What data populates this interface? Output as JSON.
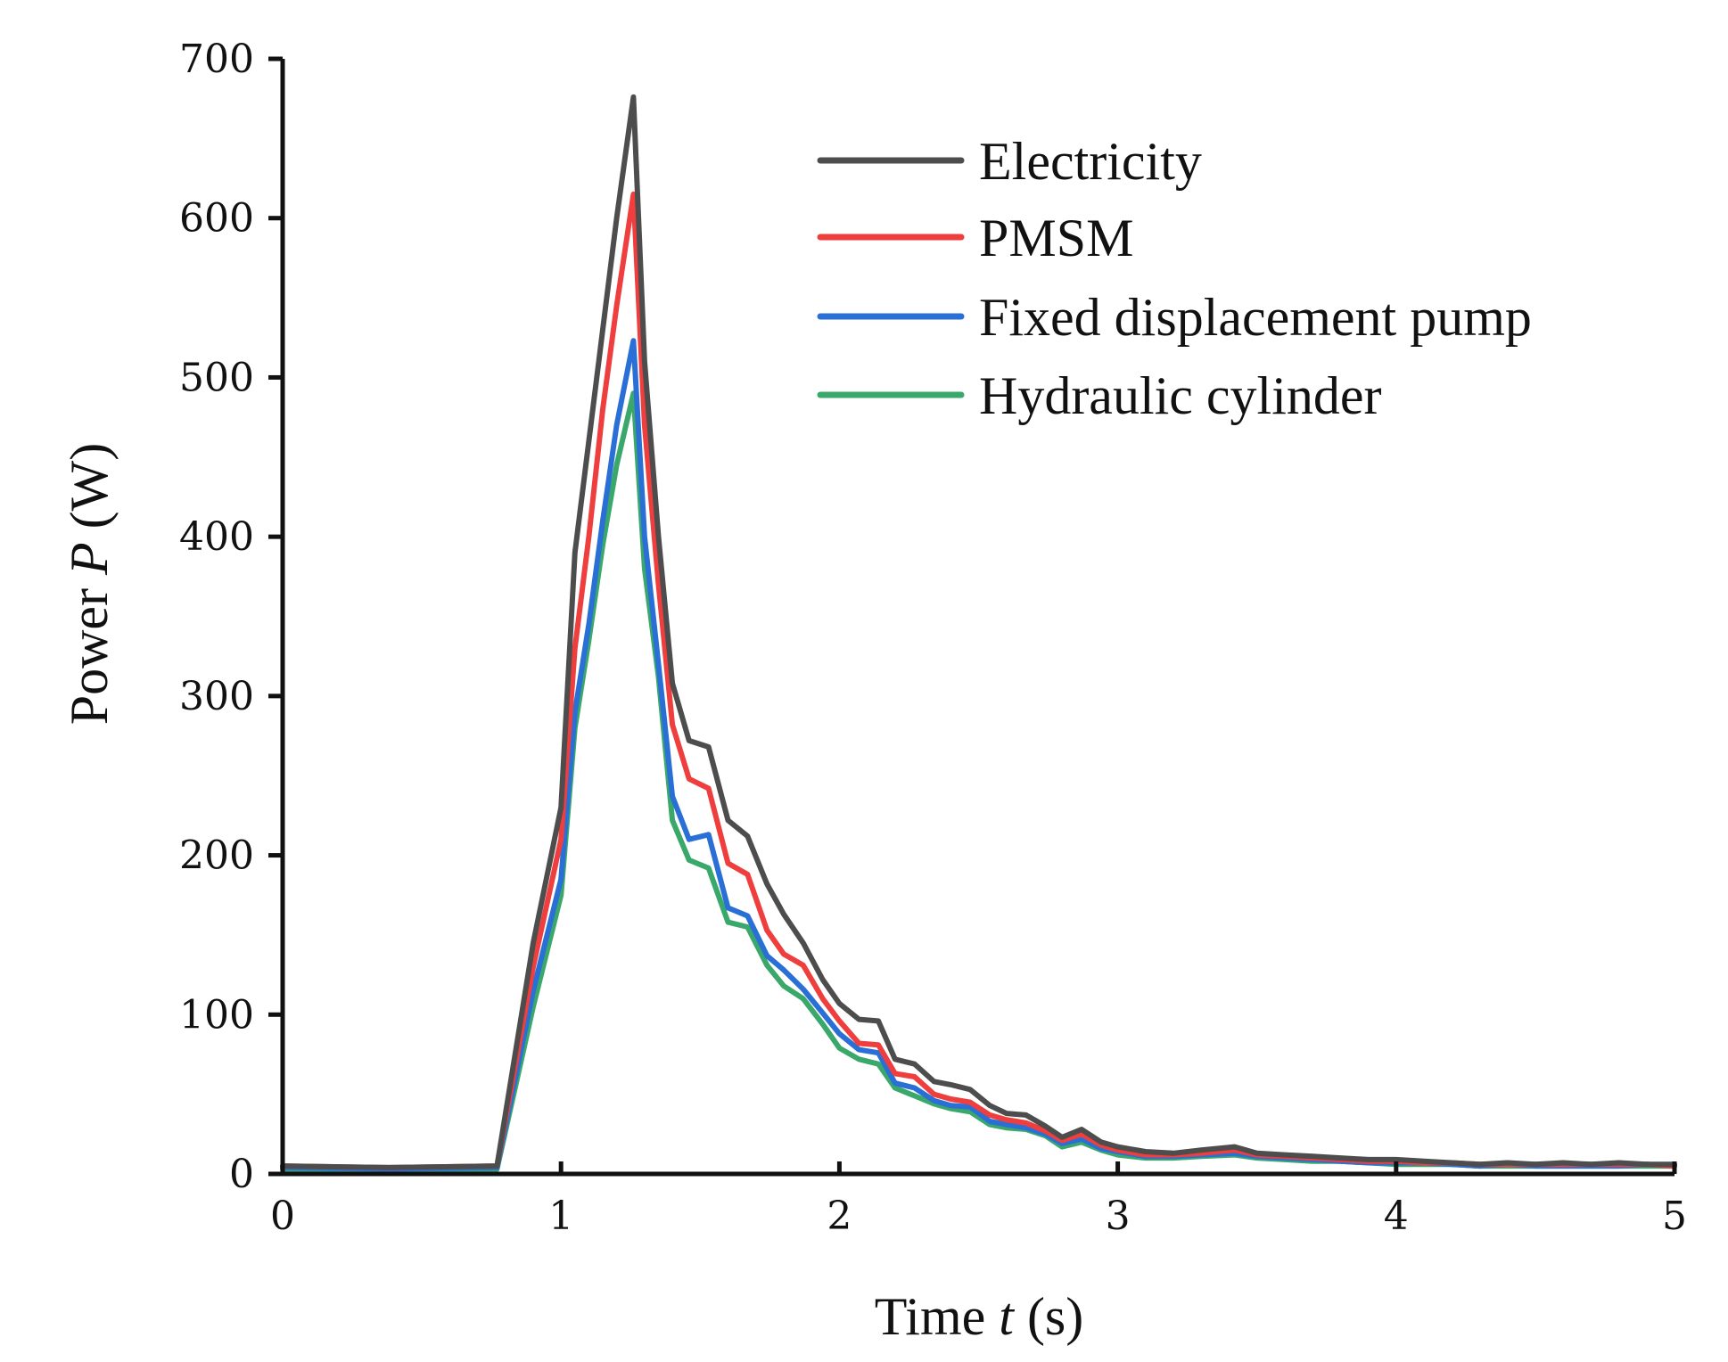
{
  "chart_data": {
    "type": "line",
    "title": "",
    "xlabel": {
      "prefix": "Time ",
      "symbol": "t",
      "suffix": " (s)"
    },
    "ylabel": {
      "prefix": "Power ",
      "symbol": "P",
      "suffix": " (W)"
    },
    "xlim": [
      0,
      5
    ],
    "ylim": [
      0,
      700
    ],
    "xticks": [
      0,
      1,
      2,
      3,
      4,
      5
    ],
    "yticks": [
      0,
      100,
      200,
      300,
      400,
      500,
      600,
      700
    ],
    "grid": false,
    "legend_position": "top-right",
    "series": [
      {
        "name": "Electricity",
        "color": "#4d4d4d",
        "x": [
          0,
          0.38,
          0.77,
          0.9,
          1.0,
          1.05,
          1.1,
          1.15,
          1.2,
          1.26,
          1.3,
          1.35,
          1.4,
          1.46,
          1.53,
          1.6,
          1.67,
          1.74,
          1.8,
          1.87,
          1.94,
          2.0,
          2.07,
          2.14,
          2.2,
          2.27,
          2.34,
          2.4,
          2.47,
          2.54,
          2.6,
          2.67,
          2.74,
          2.8,
          2.87,
          2.94,
          3.0,
          3.1,
          3.2,
          3.3,
          3.42,
          3.5,
          3.6,
          3.7,
          3.8,
          3.9,
          4.0,
          4.1,
          4.2,
          4.3,
          4.4,
          4.5,
          4.6,
          4.7,
          4.8,
          4.9,
          5.0
        ],
        "y": [
          5,
          4,
          5,
          145,
          230,
          390,
          460,
          530,
          600,
          676,
          510,
          400,
          308,
          272,
          268,
          222,
          212,
          182,
          163,
          145,
          122,
          107,
          97,
          96,
          72,
          69,
          58,
          56,
          53,
          43,
          38,
          37,
          30,
          23,
          28,
          20,
          17,
          14,
          13,
          15,
          17,
          13,
          12,
          11,
          10,
          9,
          9,
          8,
          7,
          6,
          7,
          6,
          7,
          6,
          7,
          6,
          6
        ]
      },
      {
        "name": "PMSM",
        "color": "#ee3e3e",
        "x": [
          0,
          0.38,
          0.77,
          0.9,
          1.0,
          1.05,
          1.1,
          1.15,
          1.2,
          1.26,
          1.3,
          1.35,
          1.4,
          1.46,
          1.53,
          1.6,
          1.67,
          1.74,
          1.8,
          1.87,
          1.94,
          2.0,
          2.07,
          2.14,
          2.2,
          2.27,
          2.34,
          2.4,
          2.47,
          2.54,
          2.6,
          2.67,
          2.74,
          2.8,
          2.87,
          2.94,
          3.0,
          3.1,
          3.2,
          3.3,
          3.42,
          3.5,
          3.6,
          3.7,
          3.8,
          3.9,
          4.0,
          4.1,
          4.2,
          4.3,
          4.4,
          4.5,
          4.6,
          4.7,
          4.8,
          4.9,
          5.0
        ],
        "y": [
          5,
          4,
          5,
          130,
          210,
          330,
          400,
          480,
          545,
          615,
          470,
          370,
          282,
          248,
          242,
          195,
          188,
          153,
          138,
          131,
          110,
          96,
          82,
          81,
          63,
          61,
          50,
          47,
          45,
          37,
          34,
          32,
          27,
          21,
          25,
          18,
          15,
          12,
          12,
          13,
          15,
          12,
          11,
          10,
          9,
          8,
          8,
          7,
          7,
          6,
          6,
          6,
          6,
          6,
          6,
          6,
          5
        ]
      },
      {
        "name": "Fixed displacement pump",
        "color": "#2a6fd6",
        "x": [
          0,
          0.38,
          0.77,
          0.9,
          1.0,
          1.05,
          1.1,
          1.15,
          1.2,
          1.26,
          1.3,
          1.35,
          1.4,
          1.46,
          1.53,
          1.6,
          1.67,
          1.74,
          1.8,
          1.87,
          1.94,
          2.0,
          2.07,
          2.14,
          2.2,
          2.27,
          2.34,
          2.4,
          2.47,
          2.54,
          2.6,
          2.67,
          2.74,
          2.8,
          2.87,
          2.94,
          3.0,
          3.1,
          3.2,
          3.3,
          3.42,
          3.5,
          3.6,
          3.7,
          3.8,
          3.9,
          4.0,
          4.1,
          4.2,
          4.3,
          4.4,
          4.5,
          4.6,
          4.7,
          4.8,
          4.9,
          5.0
        ],
        "y": [
          4,
          3,
          4,
          115,
          185,
          290,
          345,
          410,
          470,
          523,
          400,
          320,
          237,
          210,
          213,
          167,
          162,
          137,
          128,
          116,
          101,
          88,
          78,
          76,
          57,
          54,
          46,
          43,
          42,
          33,
          31,
          29,
          25,
          19,
          22,
          16,
          14,
          11,
          11,
          12,
          13,
          11,
          10,
          9,
          8,
          7,
          7,
          7,
          6,
          5,
          6,
          5,
          5,
          5,
          5,
          6,
          5
        ]
      },
      {
        "name": "Hydraulic cylinder",
        "color": "#3aa86a",
        "x": [
          0,
          0.38,
          0.77,
          0.9,
          1.0,
          1.05,
          1.1,
          1.15,
          1.2,
          1.26,
          1.3,
          1.35,
          1.4,
          1.46,
          1.53,
          1.6,
          1.67,
          1.74,
          1.8,
          1.87,
          1.94,
          2.0,
          2.07,
          2.14,
          2.2,
          2.27,
          2.34,
          2.4,
          2.47,
          2.54,
          2.6,
          2.67,
          2.74,
          2.8,
          2.87,
          2.94,
          3.0,
          3.1,
          3.2,
          3.3,
          3.42,
          3.5,
          3.6,
          3.7,
          3.8,
          3.9,
          4.0,
          4.1,
          4.2,
          4.3,
          4.4,
          4.5,
          4.6,
          4.7,
          4.8,
          4.9,
          5.0
        ],
        "y": [
          3,
          3,
          3,
          105,
          175,
          280,
          335,
          395,
          445,
          490,
          380,
          312,
          222,
          197,
          192,
          158,
          155,
          131,
          118,
          110,
          94,
          79,
          72,
          69,
          54,
          49,
          44,
          41,
          39,
          31,
          29,
          28,
          24,
          17,
          20,
          15,
          12,
          10,
          10,
          11,
          12,
          10,
          9,
          8,
          8,
          7,
          6,
          6,
          6,
          5,
          5,
          5,
          5,
          5,
          5,
          5,
          5
        ]
      }
    ]
  }
}
